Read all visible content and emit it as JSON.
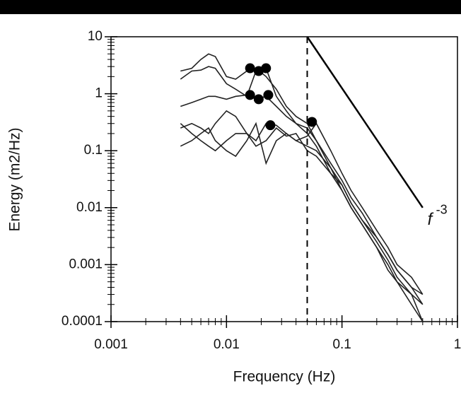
{
  "chart_data": {
    "type": "line",
    "xlabel": "Frequency (Hz)",
    "ylabel": "Energy (m2/Hz)",
    "xscale": "log",
    "yscale": "log",
    "xlim": [
      0.001,
      1
    ],
    "ylim": [
      0.0001,
      10
    ],
    "xticks": [
      0.001,
      0.01,
      0.1,
      1
    ],
    "yticks": [
      0.0001,
      0.001,
      0.01,
      0.1,
      1,
      10
    ],
    "minor_ticks": true,
    "x": [
      0.004,
      0.005,
      0.006,
      0.007,
      0.008,
      0.01,
      0.012,
      0.015,
      0.018,
      0.022,
      0.027,
      0.033,
      0.04,
      0.05,
      0.06,
      0.08,
      0.1,
      0.12,
      0.15,
      0.2,
      0.25,
      0.3,
      0.4,
      0.5
    ],
    "series": [
      {
        "color": "#222222",
        "values": [
          2.5,
          2.8,
          4,
          5,
          4.5,
          2,
          1.8,
          2.5,
          2.8,
          2,
          1.2,
          0.6,
          0.4,
          0.3,
          0.15,
          0.05,
          0.02,
          0.01,
          0.005,
          0.002,
          0.0008,
          0.0005,
          0.0002,
          0.0001
        ]
      },
      {
        "color": "#222222",
        "values": [
          1.8,
          2.5,
          2.6,
          3,
          2.8,
          1.5,
          1.2,
          0.9,
          2.5,
          2.8,
          0.9,
          0.5,
          0.3,
          0.2,
          0.12,
          0.04,
          0.025,
          0.012,
          0.006,
          0.0025,
          0.0012,
          0.0006,
          0.0003,
          0.0002
        ]
      },
      {
        "color": "#222222",
        "values": [
          0.6,
          0.7,
          0.8,
          0.9,
          0.9,
          0.8,
          0.9,
          0.95,
          0.8,
          0.9,
          0.6,
          0.4,
          0.3,
          0.25,
          0.15,
          0.06,
          0.03,
          0.015,
          0.008,
          0.003,
          0.0015,
          0.0008,
          0.0004,
          0.0002
        ]
      },
      {
        "color": "#222222",
        "values": [
          0.25,
          0.3,
          0.25,
          0.2,
          0.3,
          0.5,
          0.4,
          0.2,
          0.15,
          0.3,
          0.28,
          0.2,
          0.15,
          0.12,
          0.1,
          0.05,
          0.025,
          0.012,
          0.006,
          0.003,
          0.0015,
          0.0008,
          0.0004,
          0.0003
        ]
      },
      {
        "color": "#222222",
        "values": [
          0.12,
          0.15,
          0.2,
          0.25,
          0.15,
          0.1,
          0.08,
          0.15,
          0.3,
          0.06,
          0.15,
          0.2,
          0.15,
          0.18,
          0.3,
          0.1,
          0.04,
          0.02,
          0.01,
          0.004,
          0.002,
          0.001,
          0.0006,
          0.0003
        ]
      },
      {
        "color": "#222222",
        "values": [
          0.3,
          0.2,
          0.15,
          0.12,
          0.1,
          0.15,
          0.2,
          0.2,
          0.12,
          0.15,
          0.25,
          0.18,
          0.2,
          0.1,
          0.08,
          0.04,
          0.02,
          0.01,
          0.005,
          0.002,
          0.001,
          0.0005,
          0.0003,
          0.0001
        ]
      }
    ],
    "peaks": {
      "color": "#000000",
      "x": [
        0.016,
        0.019,
        0.022,
        0.016,
        0.019,
        0.023,
        0.024,
        0.055
      ],
      "values": [
        2.8,
        2.5,
        2.8,
        0.95,
        0.8,
        0.95,
        0.28,
        0.32
      ]
    },
    "vline": 0.05,
    "ref_line": {
      "x": [
        0.05,
        0.5
      ],
      "values": [
        10,
        0.01
      ]
    },
    "annotation": {
      "text": "f",
      "superscript": "-3",
      "x": 0.55,
      "y": 0.006
    }
  }
}
